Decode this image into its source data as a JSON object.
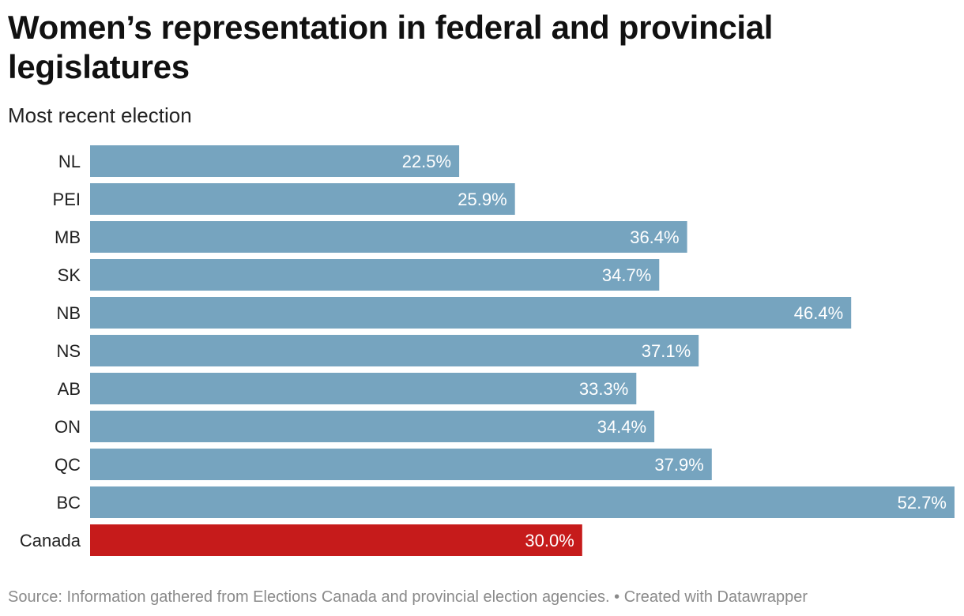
{
  "title": "Women’s representation in federal and provincial legislatures",
  "subtitle": "Most recent election",
  "footer": {
    "source": "Source: Information gathered from Elections Canada and provincial election agencies.",
    "separator": " • ",
    "credit": "Created with Datawrapper"
  },
  "colors": {
    "province_bar": "#76a4bf",
    "national_bar": "#c61b1b"
  },
  "chart_data": {
    "type": "bar",
    "orientation": "horizontal",
    "title": "Women’s representation in federal and provincial legislatures",
    "subtitle": "Most recent election",
    "xlabel": "",
    "ylabel": "",
    "xlim": [
      0,
      52.7
    ],
    "unit": "%",
    "categories": [
      "NL",
      "PEI",
      "MB",
      "SK",
      "NB",
      "NS",
      "AB",
      "ON",
      "QC",
      "BC",
      "Canada"
    ],
    "values": [
      22.5,
      25.9,
      36.4,
      34.7,
      46.4,
      37.1,
      33.3,
      34.4,
      37.9,
      52.7,
      30.0
    ],
    "value_labels": [
      "22.5%",
      "25.9%",
      "36.4%",
      "34.7%",
      "46.4%",
      "37.1%",
      "33.3%",
      "34.4%",
      "37.9%",
      "52.7%",
      "30.0%"
    ],
    "highlight": "Canada"
  }
}
